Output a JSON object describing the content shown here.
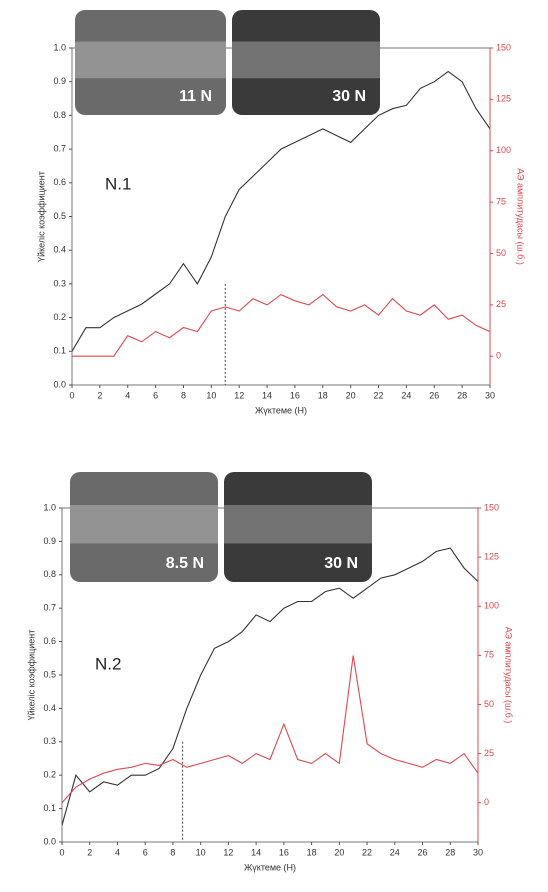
{
  "chart_data": [
    {
      "type": "line",
      "annotation": "N.1",
      "insets": [
        {
          "label": "11 N"
        },
        {
          "label": "30 N"
        }
      ],
      "x_label": "Жүктеме (Н)",
      "y_label": "Үйкеліс коэффициент",
      "y2_label": "АЭ амплитудасы (ш.б.)",
      "x": [
        0,
        1,
        2,
        3,
        4,
        5,
        6,
        7,
        8,
        9,
        10,
        11,
        12,
        13,
        14,
        15,
        16,
        17,
        18,
        19,
        20,
        21,
        22,
        23,
        24,
        25,
        26,
        27,
        28,
        29,
        30
      ],
      "series": [
        {
          "name": "Үйкеліс коэффициент",
          "color": "#333333",
          "values": [
            0.1,
            0.17,
            0.17,
            0.2,
            0.22,
            0.24,
            0.27,
            0.3,
            0.36,
            0.3,
            0.38,
            0.5,
            0.58,
            0.62,
            0.66,
            0.7,
            0.72,
            0.74,
            0.76,
            0.74,
            0.72,
            0.76,
            0.8,
            0.82,
            0.83,
            0.88,
            0.9,
            0.93,
            0.9,
            0.82,
            0.76
          ]
        },
        {
          "name": "АЭ амплитудасы (ш.б.)",
          "color": "#e0474c",
          "axis": "y2",
          "values": [
            0,
            0,
            0,
            0,
            10,
            7,
            12,
            9,
            14,
            12,
            22,
            24,
            22,
            28,
            25,
            30,
            27,
            25,
            30,
            24,
            22,
            25,
            20,
            28,
            22,
            20,
            25,
            18,
            20,
            15,
            12
          ]
        }
      ],
      "marker_x": 11,
      "xlim": [
        0,
        30
      ],
      "xticks": [
        0,
        2,
        4,
        6,
        8,
        10,
        12,
        14,
        16,
        18,
        20,
        22,
        24,
        26,
        28,
        30
      ],
      "ylim": [
        0,
        1
      ],
      "yticks": [
        {
          "value": 0,
          "label": "0.0"
        },
        0.1,
        0.2,
        0.3,
        0.4,
        0.5,
        0.6,
        0.7,
        0.8,
        0.9,
        {
          "value": 1,
          "label": "1.0"
        }
      ],
      "y2lim": [
        -14,
        150
      ],
      "y2ticks": [
        0,
        25,
        50,
        75,
        100,
        125,
        150
      ]
    },
    {
      "type": "line",
      "annotation": "N.2",
      "insets": [
        {
          "label": "8.5 N"
        },
        {
          "label": "30 N"
        }
      ],
      "x_label": "Жүктеме (Н)",
      "y_label": "Үйкеліс коэффициент",
      "y2_label": "АЭ амплитудасы (ш.б.)",
      "x": [
        0,
        1,
        2,
        3,
        4,
        5,
        6,
        7,
        8,
        9,
        10,
        11,
        12,
        13,
        14,
        15,
        16,
        17,
        18,
        19,
        20,
        21,
        22,
        23,
        24,
        25,
        26,
        27,
        28,
        29,
        30
      ],
      "series": [
        {
          "name": "Үйкеліс коэффициент",
          "color": "#333333",
          "values": [
            0.05,
            0.2,
            0.15,
            0.18,
            0.17,
            0.2,
            0.2,
            0.22,
            0.28,
            0.4,
            0.5,
            0.58,
            0.6,
            0.63,
            0.68,
            0.66,
            0.7,
            0.72,
            0.72,
            0.75,
            0.76,
            0.73,
            0.76,
            0.79,
            0.8,
            0.82,
            0.84,
            0.87,
            0.88,
            0.82,
            0.78
          ]
        },
        {
          "name": "АЭ амплитудасы (ш.б.)",
          "color": "#e0474c",
          "axis": "y2",
          "values": [
            0,
            8,
            12,
            15,
            17,
            18,
            20,
            19,
            22,
            18,
            20,
            22,
            24,
            20,
            25,
            22,
            40,
            22,
            20,
            25,
            20,
            75,
            30,
            25,
            22,
            20,
            18,
            22,
            20,
            25,
            15
          ]
        }
      ],
      "marker_x": 8.7,
      "xlim": [
        0,
        30
      ],
      "xticks": [
        0,
        2,
        4,
        6,
        8,
        10,
        12,
        14,
        16,
        18,
        20,
        22,
        24,
        26,
        28,
        30
      ],
      "ylim": [
        0,
        1
      ],
      "yticks": [
        {
          "value": 0,
          "label": "0.0"
        },
        0.1,
        0.2,
        0.3,
        0.4,
        0.5,
        0.6,
        0.7,
        0.8,
        0.9,
        {
          "value": 1,
          "label": "1.0"
        }
      ],
      "y2lim": [
        -20,
        150
      ],
      "y2ticks": [
        0,
        25,
        50,
        75,
        100,
        125,
        150
      ]
    }
  ]
}
